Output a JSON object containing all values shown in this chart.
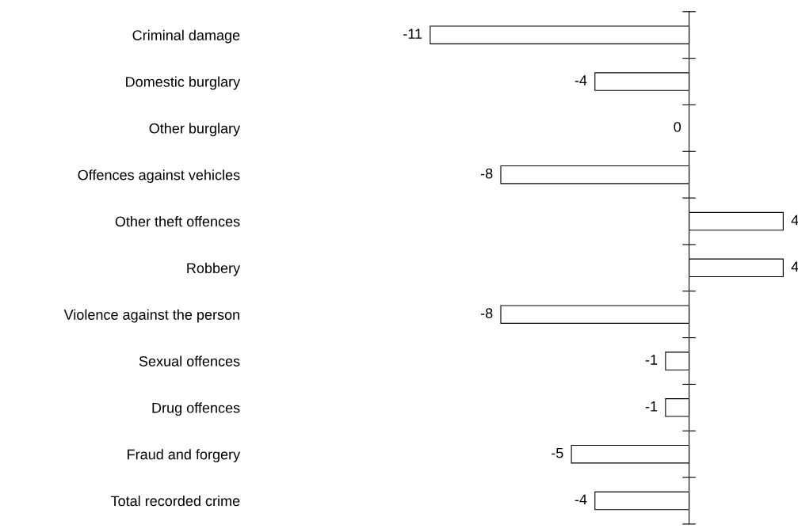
{
  "chart_data": {
    "type": "bar",
    "orientation": "horizontal",
    "categories": [
      "Criminal damage",
      "Domestic burglary",
      "Other burglary",
      "Offences against vehicles",
      "Other theft offences",
      "Robbery",
      "Violence against the person",
      "Sexual offences",
      "Drug offences",
      "Fraud and forgery",
      "Total recorded crime"
    ],
    "values": [
      -11,
      -4,
      0,
      -8,
      4,
      4,
      -8,
      -1,
      -1,
      -5,
      -4
    ],
    "color": "#ffffff",
    "data_labels": true,
    "grid": false,
    "legend": false
  }
}
